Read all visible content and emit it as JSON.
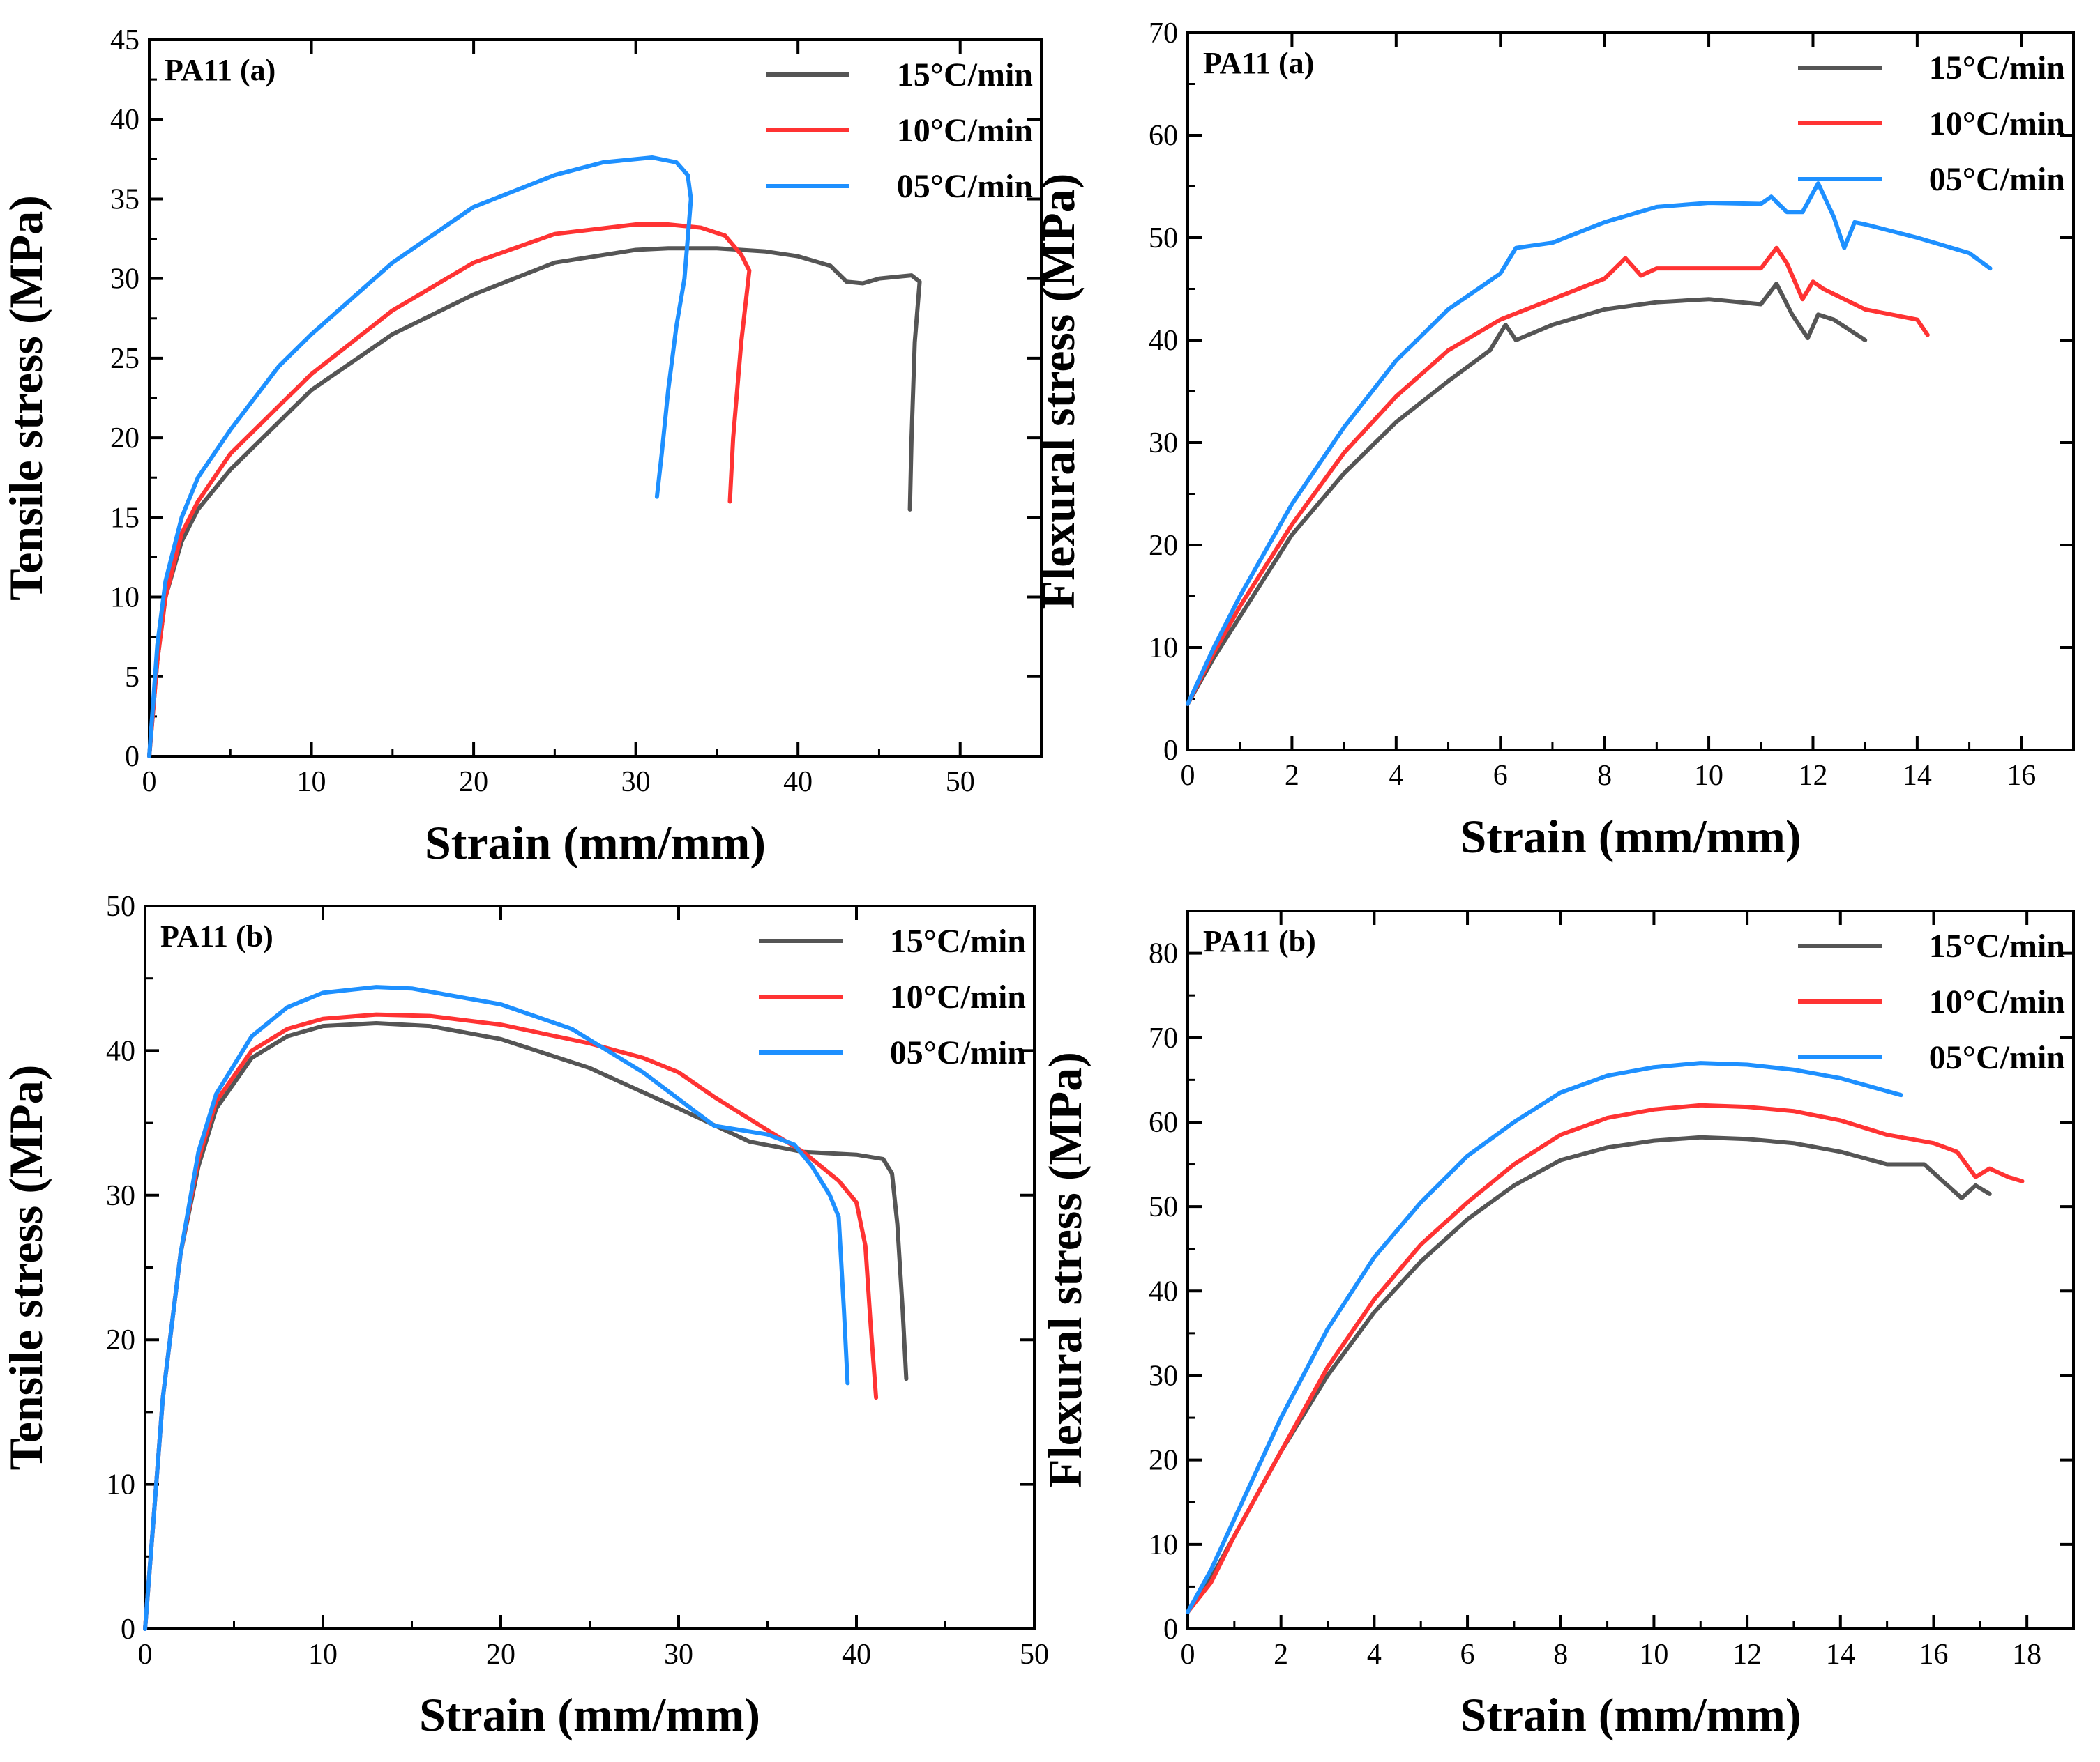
{
  "chart_data": [
    {
      "type": "line",
      "panel_label": "PA11 (a)",
      "xlabel": "Strain (mm/mm)",
      "ylabel": "Tensile stress (MPa)",
      "xlim": [
        0,
        55
      ],
      "ylim": [
        0,
        45
      ],
      "xticks": [
        0,
        10,
        20,
        30,
        40,
        50
      ],
      "yticks": [
        0,
        5,
        10,
        15,
        20,
        25,
        30,
        35,
        40,
        45
      ],
      "legend": "top-right",
      "series": [
        {
          "name": "15°C/min",
          "color": "#555555",
          "x": [
            0,
            0.5,
            1,
            2,
            3,
            5,
            8,
            10,
            15,
            20,
            25,
            30,
            32,
            35,
            38,
            40,
            42,
            43,
            44,
            45,
            46,
            47,
            47.5,
            47.2,
            47.0,
            46.9
          ],
          "y": [
            0,
            6,
            10,
            13.5,
            15.5,
            18,
            21,
            23,
            26.5,
            29,
            31,
            31.8,
            31.9,
            31.9,
            31.7,
            31.4,
            30.8,
            29.8,
            29.7,
            30,
            30.1,
            30.2,
            29.8,
            26,
            20,
            15.5
          ]
        },
        {
          "name": "10°C/min",
          "color": "#ff3333",
          "x": [
            0,
            0.5,
            1,
            2,
            3,
            5,
            8,
            10,
            15,
            20,
            25,
            30,
            32,
            34,
            35.5,
            36.5,
            37,
            36.5,
            36,
            35.8
          ],
          "y": [
            0,
            6,
            10,
            14,
            16,
            19,
            22,
            24,
            28,
            31,
            32.8,
            33.4,
            33.4,
            33.2,
            32.7,
            31.5,
            30.5,
            26,
            20,
            16
          ]
        },
        {
          "name": "05°C/min",
          "color": "#1e90ff",
          "x": [
            0,
            0.5,
            1,
            2,
            3,
            5,
            8,
            10,
            15,
            20,
            25,
            28,
            31,
            32.5,
            33.2,
            33.4,
            33.0,
            32.5,
            32.0,
            31.6,
            31.3
          ],
          "y": [
            0,
            7,
            11,
            15,
            17.5,
            20.5,
            24.5,
            26.5,
            31,
            34.5,
            36.5,
            37.3,
            37.6,
            37.3,
            36.5,
            35,
            30,
            27,
            23,
            19,
            16.3
          ]
        }
      ]
    },
    {
      "type": "line",
      "panel_label": "PA11 (a)",
      "xlabel": "Strain (mm/mm)",
      "ylabel": "Flexural stress (MPa)",
      "xlim": [
        0,
        17
      ],
      "ylim": [
        0,
        70
      ],
      "xticks": [
        0,
        2,
        4,
        6,
        8,
        10,
        12,
        14,
        16
      ],
      "yticks": [
        0,
        10,
        20,
        30,
        40,
        50,
        60,
        70
      ],
      "legend": "top-right",
      "series": [
        {
          "name": "15°C/min",
          "color": "#555555",
          "x": [
            0,
            0.5,
            1,
            2,
            3,
            4,
            5,
            5.8,
            6.1,
            6.3,
            7,
            8,
            9,
            10,
            11,
            11.3,
            11.6,
            11.9,
            12.1,
            12.4,
            13
          ],
          "y": [
            4.5,
            9,
            13,
            21,
            27,
            32,
            36,
            39,
            41.5,
            40,
            41.5,
            43,
            43.7,
            44,
            43.5,
            45.5,
            42.5,
            40.2,
            42.5,
            42,
            40
          ]
        },
        {
          "name": "10°C/min",
          "color": "#ff3333",
          "x": [
            0,
            0.5,
            1,
            2,
            3,
            4,
            5,
            6,
            7,
            8,
            8.4,
            8.7,
            9,
            10,
            11,
            11.3,
            11.5,
            11.8,
            12.0,
            12.2,
            13,
            14,
            14.2
          ],
          "y": [
            4.5,
            9.5,
            14,
            22,
            29,
            34.5,
            39,
            42,
            44,
            46,
            48,
            46.3,
            47,
            47,
            47,
            49,
            47.5,
            44,
            45.7,
            45,
            43,
            42,
            40.5
          ]
        },
        {
          "name": "05°C/min",
          "color": "#1e90ff",
          "x": [
            0,
            0.5,
            1,
            2,
            3,
            4,
            5,
            6,
            6.3,
            7,
            8,
            9,
            10,
            11,
            11.2,
            11.5,
            11.8,
            12.1,
            12.4,
            12.6,
            12.8,
            13,
            14,
            15,
            15.4
          ],
          "y": [
            4.5,
            10,
            15,
            24,
            31.5,
            38,
            43,
            46.5,
            49,
            49.5,
            51.5,
            53,
            53.4,
            53.3,
            54,
            52.5,
            52.5,
            55.3,
            52,
            49,
            51.5,
            51.3,
            50,
            48.5,
            47
          ]
        }
      ]
    },
    {
      "type": "line",
      "panel_label": "PA11 (b)",
      "xlabel": "Strain (mm/mm)",
      "ylabel": "Tensile stress (MPa)",
      "xlim": [
        0,
        50
      ],
      "ylim": [
        0,
        50
      ],
      "xticks": [
        0,
        10,
        20,
        30,
        40,
        50
      ],
      "yticks": [
        0,
        10,
        20,
        30,
        40,
        50
      ],
      "legend": "top-right",
      "series": [
        {
          "name": "15°C/min",
          "color": "#555555",
          "x": [
            0,
            0.5,
            1,
            2,
            3,
            4,
            6,
            8,
            10,
            13,
            16,
            20,
            25,
            30,
            34,
            37,
            40,
            41.5,
            42,
            42.3,
            42.6,
            42.8
          ],
          "y": [
            0,
            8,
            16,
            26,
            32,
            36,
            39.5,
            41,
            41.7,
            41.9,
            41.7,
            40.8,
            38.8,
            36,
            33.7,
            33,
            32.8,
            32.5,
            31.5,
            28,
            22,
            17.3
          ]
        },
        {
          "name": "10°C/min",
          "color": "#ff3333",
          "x": [
            0,
            0.5,
            1,
            2,
            3,
            4,
            6,
            8,
            10,
            13,
            16,
            20,
            25,
            28,
            30,
            32,
            35,
            37,
            39,
            40,
            40.5,
            40.8,
            41.1
          ],
          "y": [
            0,
            8,
            16,
            26,
            32.5,
            36.5,
            40,
            41.5,
            42.2,
            42.5,
            42.4,
            41.8,
            40.5,
            39.5,
            38.5,
            36.8,
            34.5,
            33,
            31,
            29.5,
            26.5,
            21,
            16
          ]
        },
        {
          "name": "05°C/min",
          "color": "#1e90ff",
          "x": [
            0,
            0.5,
            1,
            2,
            3,
            4,
            6,
            8,
            10,
            13,
            15,
            20,
            24,
            28,
            32,
            35,
            36.5,
            37.5,
            38.5,
            39,
            39.3,
            39.5
          ],
          "y": [
            0,
            8,
            16,
            26,
            33,
            37,
            41,
            43,
            44,
            44.4,
            44.3,
            43.2,
            41.5,
            38.5,
            34.8,
            34.2,
            33.5,
            32,
            30,
            28.5,
            22,
            17
          ]
        }
      ]
    },
    {
      "type": "line",
      "panel_label": "PA11 (b)",
      "xlabel": "Strain (mm/mm)",
      "ylabel": "Flexural stress (MPa)",
      "xlim": [
        0,
        19
      ],
      "ylim": [
        0,
        85
      ],
      "xticks": [
        0,
        2,
        4,
        6,
        8,
        10,
        12,
        14,
        16,
        18
      ],
      "yticks": [
        0,
        10,
        20,
        30,
        40,
        50,
        60,
        70,
        80
      ],
      "legend": "top-right",
      "series": [
        {
          "name": "15°C/min",
          "color": "#555555",
          "x": [
            0,
            0.5,
            1,
            2,
            3,
            4,
            5,
            6,
            7,
            8,
            9,
            10,
            11,
            12,
            13,
            14,
            15,
            15.8,
            16.2,
            16.6,
            16.9,
            17.2
          ],
          "y": [
            2,
            6,
            11,
            21,
            30,
            37.5,
            43.5,
            48.5,
            52.5,
            55.5,
            57,
            57.8,
            58.2,
            58,
            57.5,
            56.5,
            55,
            55,
            53,
            51,
            52.5,
            51.5
          ]
        },
        {
          "name": "10°C/min",
          "color": "#ff3333",
          "x": [
            0,
            0.5,
            1,
            2,
            3,
            4,
            5,
            6,
            7,
            8,
            9,
            10,
            11,
            12,
            13,
            14,
            15,
            16,
            16.5,
            16.9,
            17.2,
            17.6,
            17.9
          ],
          "y": [
            2,
            5.5,
            11,
            21,
            31,
            39,
            45.5,
            50.5,
            55,
            58.5,
            60.5,
            61.5,
            62,
            61.8,
            61.3,
            60.2,
            58.5,
            57.5,
            56.5,
            53.5,
            54.5,
            53.5,
            53
          ]
        },
        {
          "name": "05°C/min",
          "color": "#1e90ff",
          "x": [
            0,
            0.5,
            1,
            2,
            3,
            4,
            5,
            6,
            7,
            8,
            9,
            10,
            11,
            12,
            13,
            14,
            15.3
          ],
          "y": [
            2,
            7,
            13,
            25,
            35.5,
            44,
            50.5,
            56,
            60,
            63.5,
            65.5,
            66.5,
            67,
            66.8,
            66.2,
            65.2,
            63.2
          ]
        }
      ]
    }
  ]
}
